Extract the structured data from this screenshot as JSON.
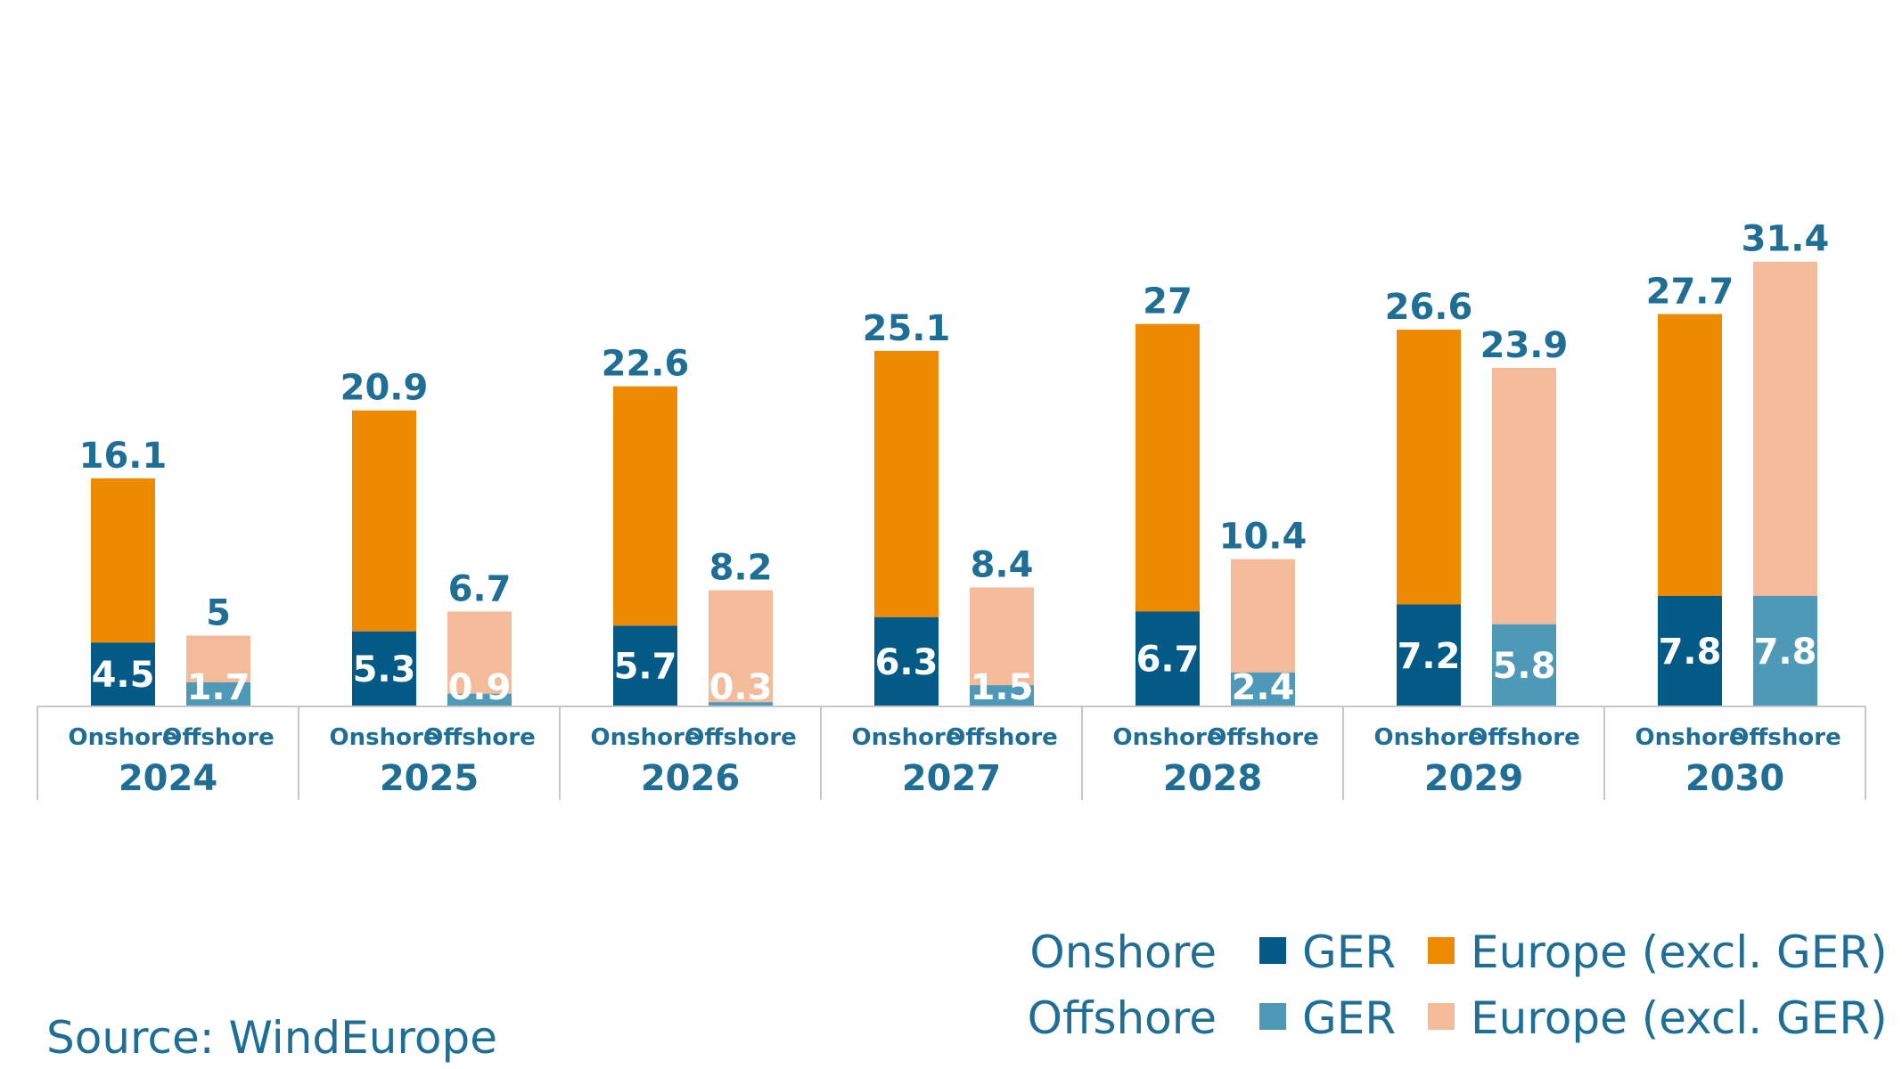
{
  "chart_data": {
    "type": "bar",
    "stacked": true,
    "categories": [
      "2024",
      "2025",
      "2026",
      "2027",
      "2028",
      "2029",
      "2030"
    ],
    "sub_categories": [
      "Onshore",
      "Offshore"
    ],
    "groups": [
      {
        "year": "2024",
        "onshore": {
          "ger": 4.5,
          "total": 16.1,
          "ger_label": "4.5",
          "total_label": "16.1"
        },
        "offshore": {
          "ger": 1.7,
          "total": 5,
          "ger_label": "1.7",
          "total_label": "5"
        }
      },
      {
        "year": "2025",
        "onshore": {
          "ger": 5.3,
          "total": 20.9,
          "ger_label": "5.3",
          "total_label": "20.9"
        },
        "offshore": {
          "ger": 0.9,
          "total": 6.7,
          "ger_label": "0.9",
          "total_label": "6.7"
        }
      },
      {
        "year": "2026",
        "onshore": {
          "ger": 5.7,
          "total": 22.6,
          "ger_label": "5.7",
          "total_label": "22.6"
        },
        "offshore": {
          "ger": 0.3,
          "total": 8.2,
          "ger_label": "0.3",
          "total_label": "8.2"
        }
      },
      {
        "year": "2027",
        "onshore": {
          "ger": 6.3,
          "total": 25.1,
          "ger_label": "6.3",
          "total_label": "25.1"
        },
        "offshore": {
          "ger": 1.5,
          "total": 8.4,
          "ger_label": "1.5",
          "total_label": "8.4"
        }
      },
      {
        "year": "2028",
        "onshore": {
          "ger": 6.7,
          "total": 27,
          "ger_label": "6.7",
          "total_label": "27"
        },
        "offshore": {
          "ger": 2.4,
          "total": 10.4,
          "ger_label": "2.4",
          "total_label": "10.4"
        }
      },
      {
        "year": "2029",
        "onshore": {
          "ger": 7.2,
          "total": 26.6,
          "ger_label": "7.2",
          "total_label": "26.6"
        },
        "offshore": {
          "ger": 5.8,
          "total": 23.9,
          "ger_label": "5.8",
          "total_label": "23.9"
        }
      },
      {
        "year": "2030",
        "onshore": {
          "ger": 7.8,
          "total": 27.7,
          "ger_label": "7.8",
          "total_label": "27.7"
        },
        "offshore": {
          "ger": 7.8,
          "total": 31.4,
          "ger_label": "7.8",
          "total_label": "31.4"
        }
      }
    ],
    "legend": {
      "placement": "bottom-right",
      "rows": [
        {
          "label": "Onshore",
          "items": [
            {
              "name": "GER",
              "color": "#045a86"
            },
            {
              "name": "Europe (excl. GER)",
              "color": "#ee8a00"
            }
          ]
        },
        {
          "label": "Offshore",
          "items": [
            {
              "name": "GER",
              "color": "#4e98b8"
            },
            {
              "name": "Europe (excl. GER)",
              "color": "#f4bb9a"
            }
          ]
        }
      ]
    },
    "source": "Source: WindEurope",
    "colors": {
      "onshore_ger": "#045a86",
      "onshore_eu": "#ee8a00",
      "offshore_ger": "#4e98b8",
      "offshore_eu": "#f4bb9a",
      "label_text": "#1f6e96",
      "axis_line": "#c7c7c7"
    },
    "ylim": [
      0,
      32
    ],
    "grid": false
  }
}
